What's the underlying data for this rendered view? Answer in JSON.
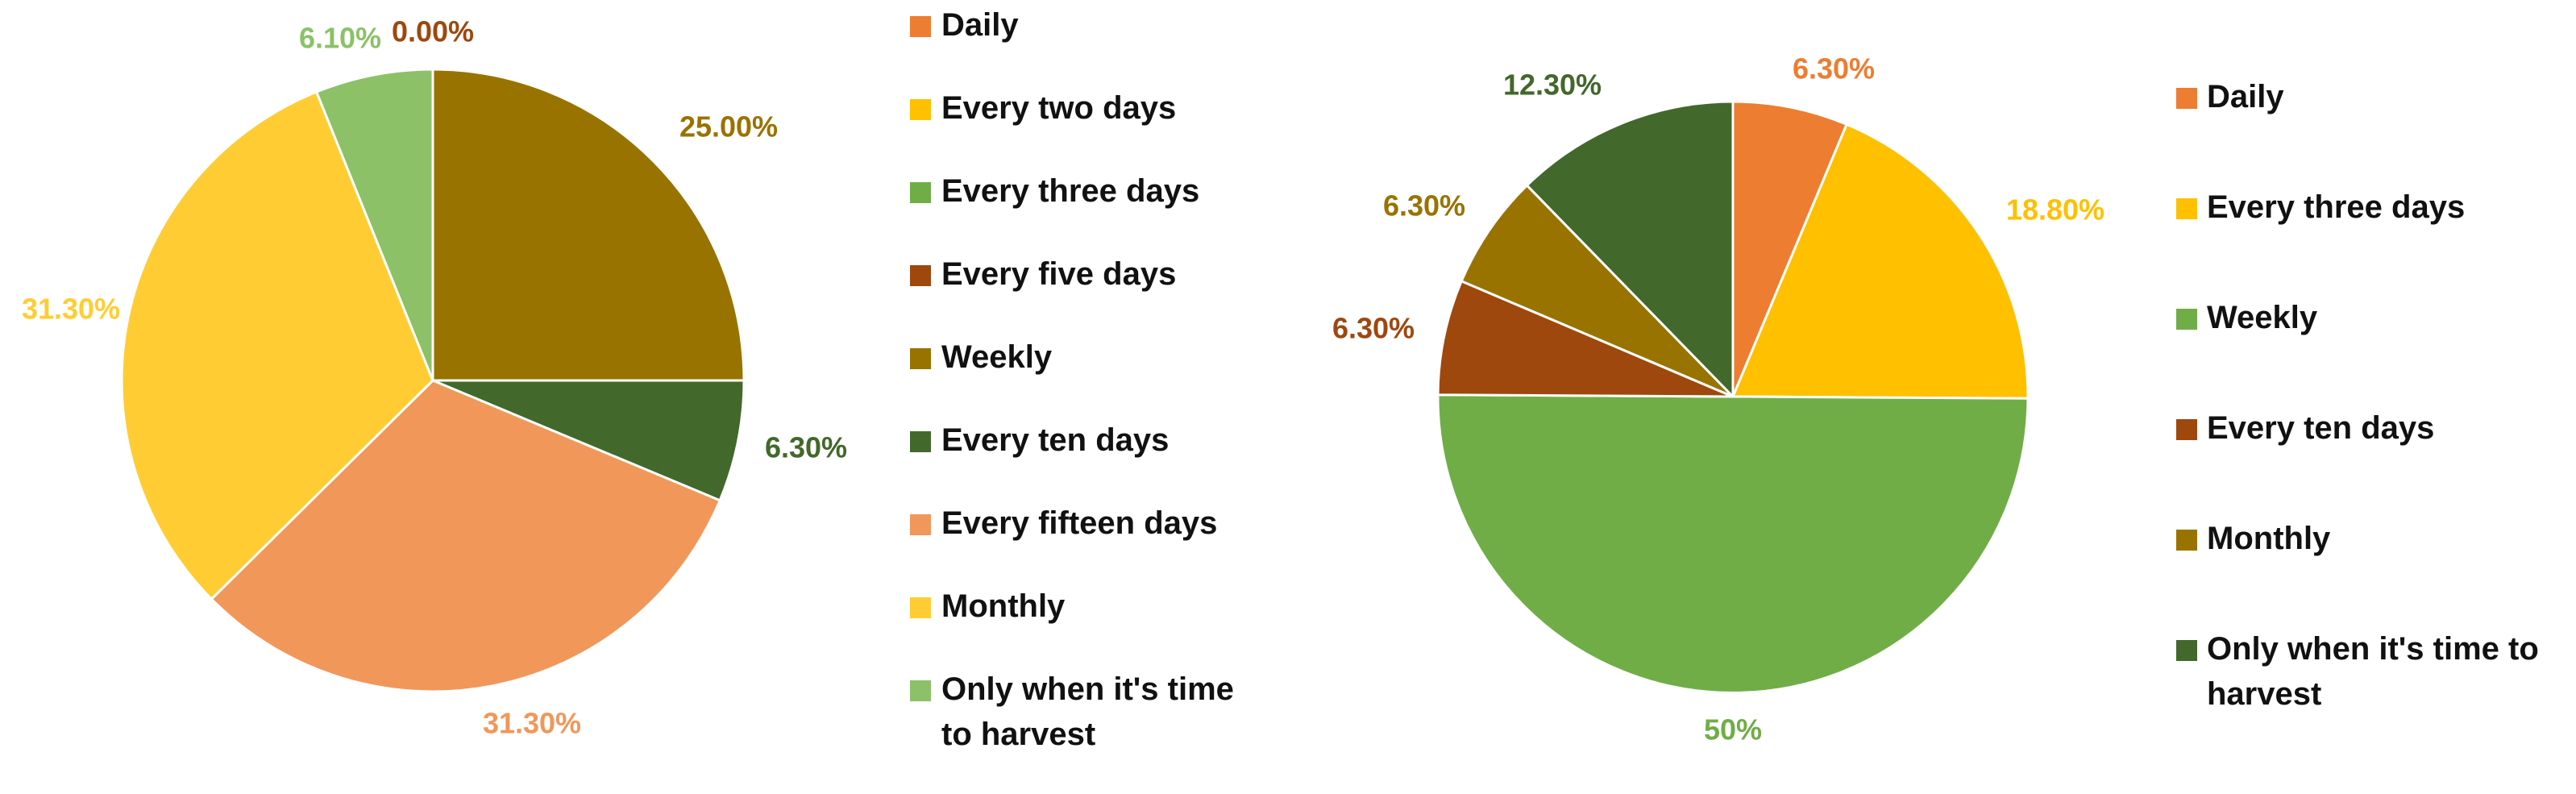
{
  "chart_data": [
    {
      "type": "pie",
      "categories": [
        "Daily",
        "Every two days",
        "Every three days",
        "Every five days",
        "Weekly",
        "Every ten days",
        "Every fifteen days",
        "Monthly",
        "Only when it's time to harvest"
      ],
      "values": [
        0,
        0,
        0,
        0,
        25.0,
        6.3,
        31.3,
        31.3,
        6.1
      ],
      "data_labels": [
        "",
        "",
        "",
        "0.00%",
        "25.00%",
        "6.30%",
        "31.30%",
        "31.30%",
        "6.10%"
      ],
      "colors": [
        "#ED7D31",
        "#FFC000",
        "#70AD47",
        "#9E480E",
        "#997300",
        "#43682B",
        "#F1975A",
        "#FFCD33",
        "#8CC168"
      ],
      "legend_lines": [
        [
          "Daily"
        ],
        [
          "Every two days"
        ],
        [
          "Every three days"
        ],
        [
          "Every five days"
        ],
        [
          "Weekly"
        ],
        [
          "Every ten days"
        ],
        [
          "Every fifteen days"
        ],
        [
          "Monthly"
        ],
        [
          "Only when it's time",
          "to harvest"
        ]
      ],
      "legend_position": "right",
      "start_angle": 0,
      "direction": "clockwise"
    },
    {
      "type": "pie",
      "categories": [
        "Daily",
        "Every three days",
        "Weekly",
        "Every ten days",
        "Monthly",
        "Only when it's time to harvest"
      ],
      "values": [
        6.3,
        18.8,
        50,
        6.3,
        6.3,
        12.3
      ],
      "data_labels": [
        "6.30%",
        "18.80%",
        "50%",
        "6.30%",
        "6.30%",
        "12.30%"
      ],
      "colors": [
        "#ED7D31",
        "#FFC000",
        "#70AD47",
        "#9E480E",
        "#997300",
        "#43682B"
      ],
      "legend_lines": [
        [
          "Daily"
        ],
        [
          "Every three days"
        ],
        [
          "Weekly"
        ],
        [
          "Every ten days"
        ],
        [
          "Monthly"
        ],
        [
          "Only when it's time to",
          "harvest"
        ]
      ],
      "legend_position": "right",
      "start_angle": 0,
      "direction": "clockwise"
    }
  ]
}
